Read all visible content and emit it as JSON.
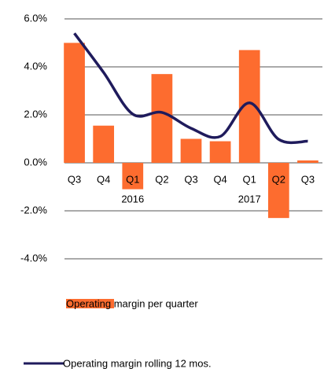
{
  "chart_data": {
    "type": "bar-line",
    "categories": [
      "Q3",
      "Q4",
      "Q1",
      "Q2",
      "Q3",
      "Q4",
      "Q1",
      "Q2",
      "Q3"
    ],
    "x_group_labels": [
      null,
      null,
      "2016",
      null,
      null,
      null,
      "2017",
      null,
      null
    ],
    "series": [
      {
        "name": "Operating margin per quarter",
        "type": "bar",
        "color": "#fd6c2f",
        "values": [
          5.0,
          1.55,
          -1.1,
          3.7,
          1.0,
          0.9,
          4.7,
          -2.3,
          0.1
        ]
      },
      {
        "name": "Operating margin rolling 12 mos.",
        "type": "line",
        "color": "#1f1b5c",
        "values": [
          5.4,
          3.77,
          2.03,
          2.1,
          1.44,
          1.1,
          2.5,
          0.98,
          0.9
        ]
      }
    ],
    "ylim": [
      -4,
      6
    ],
    "yticks": [
      {
        "value": 6,
        "label": "6.0%"
      },
      {
        "value": 4,
        "label": "4.0%"
      },
      {
        "value": 2,
        "label": "2.0%"
      },
      {
        "value": 0,
        "label": "0.0%"
      },
      {
        "value": -2,
        "label": "-2.0%"
      },
      {
        "value": -4,
        "label": "-4.0%"
      }
    ],
    "grid": true
  }
}
